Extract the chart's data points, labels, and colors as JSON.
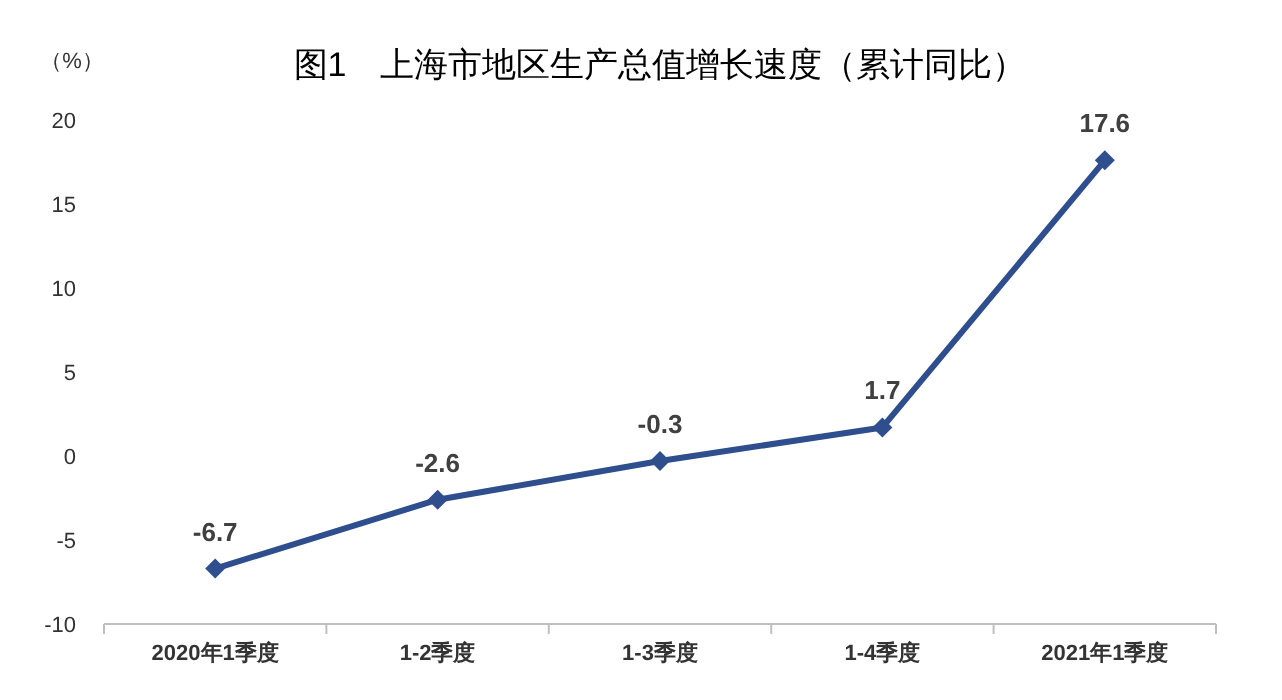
{
  "chart_data": {
    "type": "line",
    "title": "图1　上海市地区生产总值增长速度（累计同比）",
    "ylabel": "（%）",
    "categories": [
      "2020年1季度",
      "1-2季度",
      "1-3季度",
      "1-4季度",
      "2021年1季度"
    ],
    "series": [
      {
        "color": "#2e4e8e",
        "values": [
          -6.7,
          -2.6,
          -0.3,
          1.7,
          17.6
        ]
      }
    ],
    "ylim": [
      -10,
      20
    ],
    "yticks": [
      -10,
      -5,
      0,
      5,
      10,
      15,
      20
    ],
    "data_labels": true,
    "marker": "diamond",
    "grid": false
  }
}
